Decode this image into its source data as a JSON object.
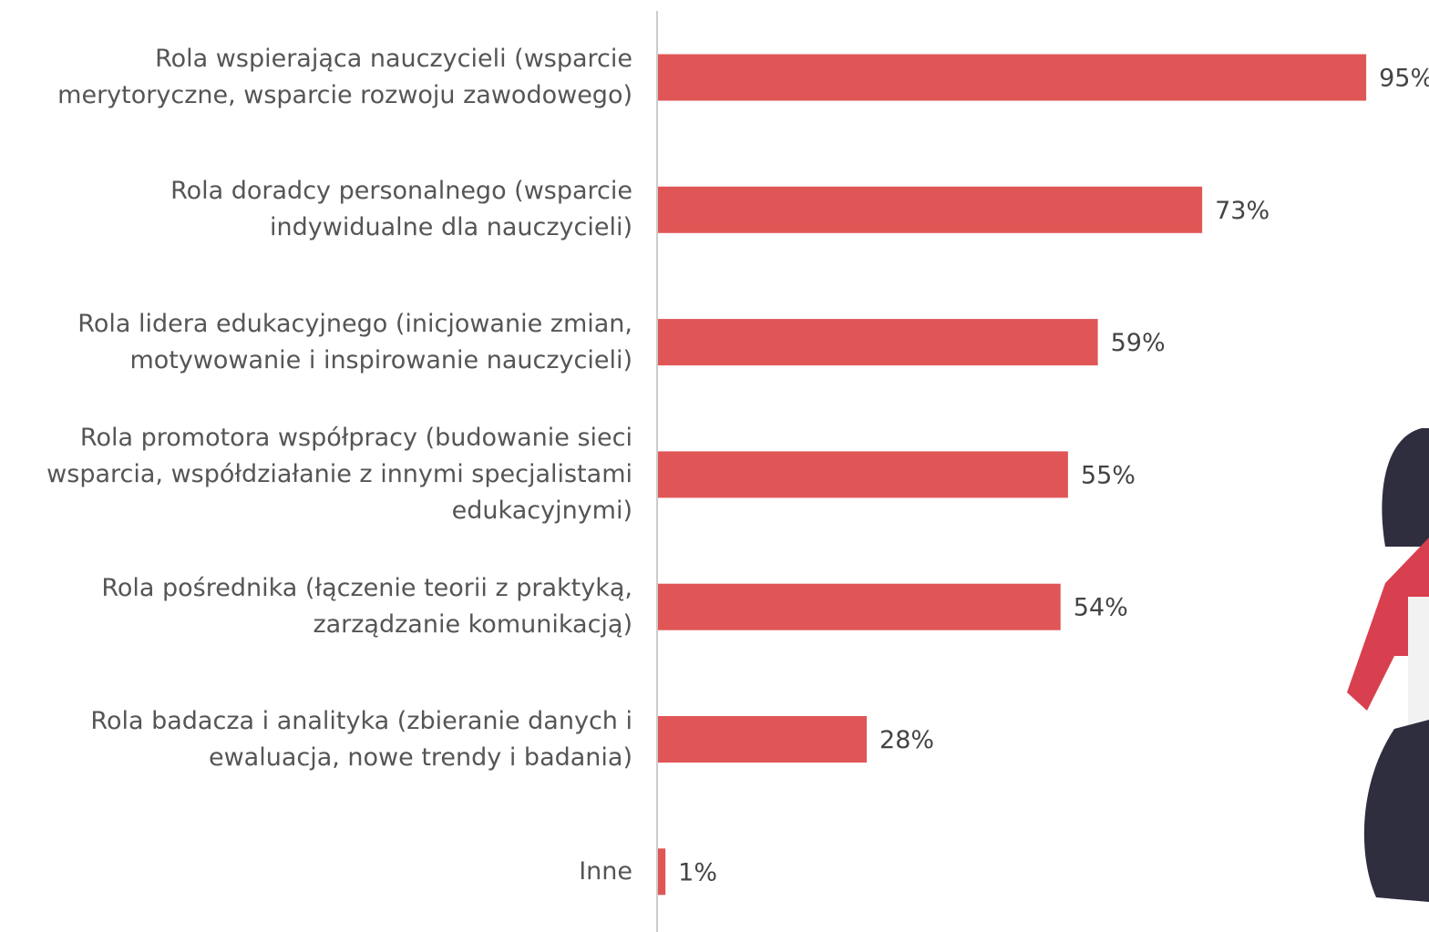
{
  "chart_data": {
    "type": "bar",
    "orientation": "horizontal",
    "categories": [
      "Rola wspierająca nauczycieli (wsparcie merytoryczne, wsparcie rozwoju zawodowego)",
      "Rola doradcy personalnego (wsparcie indywidualne dla nauczycieli)",
      "Rola lidera edukacyjnego (inicjowanie zmian, motywowanie i inspirowanie nauczycieli)",
      "Rola promotora współpracy (budowanie sieci wsparcia, współdziałanie z innymi specjalistami edukacyjnymi)",
      "Rola pośrednika (łączenie teorii z praktyką, zarządzanie komunikacją)",
      "Rola badacza i analityka (zbieranie danych i ewaluacja, nowe trendy i badania)",
      "Inne"
    ],
    "values": [
      95,
      73,
      59,
      55,
      54,
      28,
      1
    ],
    "value_labels": [
      "95%",
      "73%",
      "59%",
      "55%",
      "54%",
      "28%",
      "1%"
    ],
    "color": "#e05656",
    "xlim": [
      0,
      100
    ]
  }
}
